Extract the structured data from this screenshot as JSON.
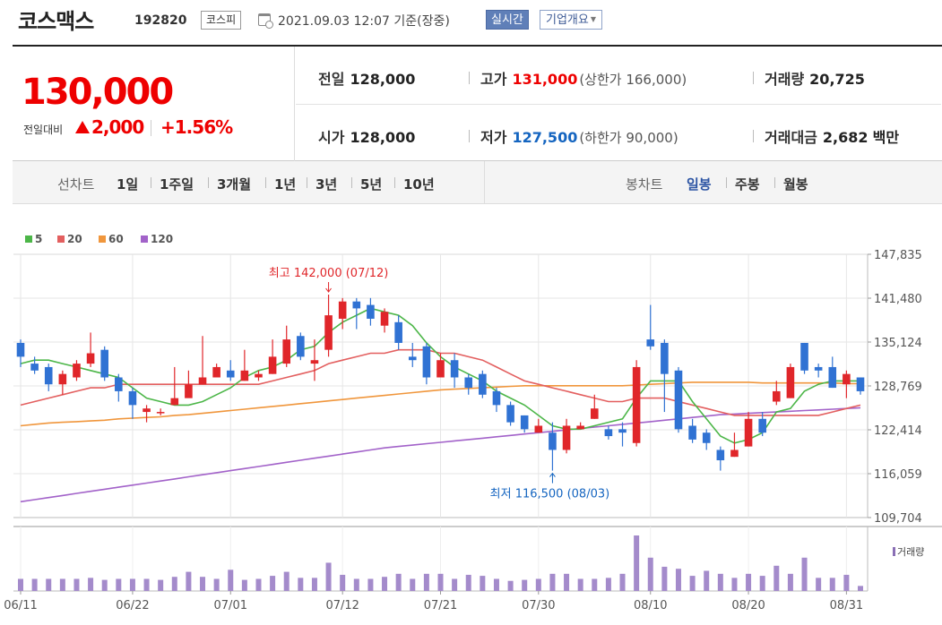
{
  "header": {
    "company_name": "코스맥스",
    "code": "192820",
    "market": "코스피",
    "datetime": "2021.09.03 12:07 기준(장중)",
    "realtime_label": "실시간",
    "company_info_label": "기업개요"
  },
  "quote": {
    "price": "130,000",
    "change_label": "전일대비",
    "change_value": "2,000",
    "change_pct": "+1.56%",
    "prev_close_label": "전일",
    "prev_close": "128,000",
    "open_label": "시가",
    "open": "128,000",
    "high_label": "고가",
    "high": "131,000",
    "upper_limit": "(상한가 166,000)",
    "low_label": "저가",
    "low": "127,500",
    "lower_limit": "(하한가 90,000)",
    "volume_label": "거래량",
    "volume": "20,725",
    "amount_label": "거래대금",
    "amount": "2,682",
    "amount_unit": "백만"
  },
  "period_bar": {
    "line_chart_label": "선차트",
    "line_periods": [
      "1일",
      "1주일",
      "3개월",
      "1년",
      "3년",
      "5년",
      "10년"
    ],
    "candle_chart_label": "봉차트",
    "candle_periods": [
      "일봉",
      "주봉",
      "월봉"
    ],
    "active_candle": "일봉"
  },
  "colors": {
    "up": "#e0262a",
    "down": "#3072d3",
    "ma5": "#4cb648",
    "ma20": "#e35f5f",
    "ma60": "#f0963c",
    "ma120": "#a262c9",
    "volume": "#a48bcb"
  },
  "chart_data": {
    "type": "candlestick",
    "legend": [
      "5",
      "20",
      "60",
      "120"
    ],
    "y_ticks": [
      "147,835",
      "141,480",
      "135,124",
      "128,769",
      "122,414",
      "116,059",
      "109,704"
    ],
    "ylim": [
      109704,
      147835
    ],
    "x_ticks": [
      "06/11",
      "06/22",
      "07/01",
      "07/12",
      "07/21",
      "07/30",
      "08/10",
      "08/20",
      "08/31"
    ],
    "max_annotation": "최고 142,000 (07/12)",
    "min_annotation": "최저 116,500 (08/03)",
    "volume_label": "거래량",
    "candles": [
      [
        135000,
        133000,
        135500,
        131500
      ],
      [
        132000,
        131000,
        133000,
        130500
      ],
      [
        131500,
        129000,
        132000,
        128000
      ],
      [
        129000,
        130500,
        131000,
        127500
      ],
      [
        130000,
        132000,
        132500,
        129500
      ],
      [
        132000,
        133500,
        136500,
        131500
      ],
      [
        134000,
        130000,
        134500,
        129500
      ],
      [
        130000,
        128000,
        130500,
        126500
      ],
      [
        128000,
        126000,
        128500,
        124000
      ],
      [
        125000,
        125500,
        126000,
        123500
      ],
      [
        125000,
        125000,
        125500,
        124500
      ],
      [
        126000,
        127000,
        131500,
        126000
      ],
      [
        127000,
        129000,
        131000,
        128000
      ],
      [
        129000,
        130000,
        136000,
        129000
      ],
      [
        130000,
        131500,
        132000,
        130000
      ],
      [
        131000,
        130000,
        132500,
        129500
      ],
      [
        129500,
        131000,
        134000,
        129500
      ],
      [
        130000,
        130500,
        131000,
        129500
      ],
      [
        130500,
        133000,
        135500,
        130500
      ],
      [
        132000,
        135500,
        137500,
        131500
      ],
      [
        136000,
        133000,
        136500,
        132500
      ],
      [
        132000,
        132500,
        135500,
        129500
      ],
      [
        134000,
        139000,
        142000,
        133000
      ],
      [
        138500,
        141000,
        141500,
        137000
      ],
      [
        141000,
        140000,
        141500,
        137000
      ],
      [
        140500,
        138500,
        141500,
        137500
      ],
      [
        137500,
        139500,
        140000,
        136500
      ],
      [
        138000,
        135000,
        139000,
        134000
      ],
      [
        133000,
        132500,
        135000,
        131500
      ],
      [
        134500,
        130000,
        135000,
        129000
      ],
      [
        130000,
        132500,
        133500,
        130000
      ],
      [
        132500,
        130000,
        133500,
        128500
      ],
      [
        130000,
        128500,
        130500,
        127500
      ],
      [
        130500,
        127500,
        131000,
        127000
      ],
      [
        128000,
        126000,
        128500,
        125000
      ],
      [
        126000,
        123500,
        126500,
        123000
      ],
      [
        124500,
        122500,
        124500,
        122000
      ],
      [
        122000,
        123000,
        124000,
        122000
      ],
      [
        122000,
        119500,
        123500,
        116500
      ],
      [
        119500,
        123000,
        124000,
        119000
      ],
      [
        122500,
        123000,
        123500,
        122500
      ],
      [
        124000,
        125500,
        127500,
        124000
      ],
      [
        122500,
        121500,
        123000,
        121000
      ],
      [
        122500,
        122000,
        123500,
        120000
      ],
      [
        120500,
        131500,
        132500,
        120000
      ],
      [
        135500,
        134500,
        140500,
        134000
      ],
      [
        135000,
        130500,
        135500,
        125000
      ],
      [
        131000,
        122500,
        131500,
        122000
      ],
      [
        123000,
        121000,
        124000,
        120500
      ],
      [
        122000,
        120500,
        122500,
        119500
      ],
      [
        119500,
        118000,
        120000,
        116500
      ],
      [
        118500,
        119500,
        122000,
        118500
      ],
      [
        120000,
        124000,
        125000,
        120000
      ],
      [
        124000,
        122000,
        125000,
        121500
      ],
      [
        126500,
        128000,
        129500,
        126000
      ],
      [
        127000,
        131500,
        132000,
        127000
      ],
      [
        135000,
        131000,
        135000,
        130500
      ],
      [
        131500,
        131000,
        132000,
        130000
      ],
      [
        131500,
        128500,
        133000,
        128500
      ],
      [
        129000,
        130500,
        131000,
        127000
      ],
      [
        130000,
        128000,
        130000,
        127500
      ]
    ],
    "ma5": [
      132000,
      132500,
      132500,
      132000,
      131500,
      131000,
      130500,
      130000,
      128500,
      127000,
      126500,
      126000,
      126000,
      126500,
      127500,
      128500,
      130000,
      131000,
      131500,
      132500,
      134000,
      134500,
      136500,
      138000,
      139000,
      140000,
      139500,
      139000,
      137500,
      135000,
      133000,
      131500,
      130500,
      129500,
      128000,
      127000,
      126000,
      124500,
      123000,
      122500,
      122500,
      123000,
      123500,
      124000,
      127000,
      129500,
      129500,
      129500,
      126500,
      124000,
      121500,
      120500,
      121000,
      122000,
      125000,
      125500,
      128000,
      129000,
      129500,
      129500,
      129500
    ],
    "ma20": [
      126000,
      126500,
      127000,
      127500,
      128000,
      128500,
      128500,
      129000,
      129000,
      129000,
      129000,
      129000,
      129000,
      129000,
      129000,
      129000,
      129000,
      129000,
      129500,
      130000,
      130500,
      131000,
      132000,
      132500,
      133000,
      133500,
      133500,
      134000,
      134000,
      134000,
      133500,
      133500,
      133000,
      132500,
      131500,
      130500,
      129500,
      129000,
      128500,
      128000,
      127500,
      127000,
      126500,
      126500,
      127000,
      127000,
      127000,
      126500,
      126000,
      125500,
      125000,
      124500,
      124500,
      124500,
      124500,
      124500,
      124500,
      124500,
      125000,
      125500,
      126000
    ],
    "ma60": [
      123000,
      123200,
      123400,
      123500,
      123600,
      123700,
      123800,
      124000,
      124100,
      124200,
      124300,
      124500,
      124600,
      124800,
      125000,
      125200,
      125400,
      125600,
      125800,
      126000,
      126200,
      126400,
      126600,
      126800,
      127000,
      127200,
      127400,
      127600,
      127800,
      128000,
      128200,
      128300,
      128400,
      128500,
      128600,
      128700,
      128800,
      128800,
      128800,
      128800,
      128800,
      128800,
      128800,
      128800,
      128900,
      129000,
      129100,
      129200,
      129300,
      129300,
      129300,
      129300,
      129300,
      129200,
      129200,
      129200,
      129200,
      129200,
      129200,
      129100,
      129100
    ],
    "ma120": [
      112000,
      112300,
      112600,
      112900,
      113200,
      113500,
      113800,
      114100,
      114400,
      114700,
      115000,
      115300,
      115600,
      115900,
      116200,
      116500,
      116800,
      117100,
      117400,
      117700,
      118000,
      118300,
      118600,
      118900,
      119200,
      119500,
      119800,
      120000,
      120200,
      120400,
      120600,
      120800,
      121000,
      121200,
      121400,
      121600,
      121800,
      122000,
      122200,
      122400,
      122600,
      122800,
      123000,
      123200,
      123400,
      123600,
      123800,
      124000,
      124200,
      124400,
      124600,
      124700,
      124800,
      124900,
      125000,
      125100,
      125200,
      125300,
      125400,
      125500,
      125600
    ],
    "volume": [
      12,
      12,
      12,
      12,
      12,
      13,
      11,
      12,
      12,
      12,
      11,
      14,
      19,
      14,
      12,
      21,
      11,
      12,
      15,
      19,
      13,
      13,
      28,
      16,
      12,
      12,
      14,
      17,
      12,
      17,
      17,
      12,
      16,
      15,
      12,
      10,
      11,
      12,
      17,
      17,
      12,
      12,
      13,
      17,
      55,
      33,
      24,
      22,
      15,
      20,
      17,
      13,
      17,
      15,
      25,
      17,
      33,
      13,
      13,
      16,
      5
    ]
  }
}
